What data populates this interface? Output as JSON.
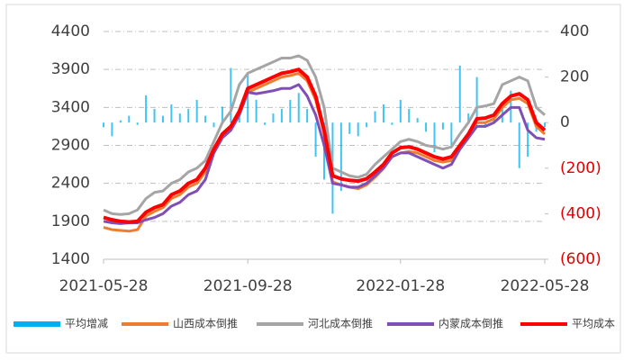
{
  "chart_data": {
    "type": "line",
    "categories": [
      "2021-05-28",
      null,
      null,
      null,
      null,
      null,
      null,
      null,
      null,
      null,
      null,
      null,
      null,
      null,
      null,
      null,
      null,
      "2021-09-28",
      null,
      null,
      null,
      null,
      null,
      null,
      null,
      null,
      null,
      null,
      null,
      null,
      null,
      null,
      null,
      null,
      null,
      "2022-01-28",
      null,
      null,
      null,
      null,
      null,
      null,
      null,
      null,
      null,
      null,
      null,
      null,
      null,
      null,
      null,
      null,
      "2022-05-28"
    ],
    "ylim": [
      1400,
      4400
    ],
    "yticks": [
      1400,
      1900,
      2400,
      2900,
      3400,
      3900,
      4400
    ],
    "y2lim": [
      -600,
      400
    ],
    "y2ticks": [
      {
        "value": -600,
        "label": "(600)"
      },
      {
        "value": -400,
        "label": "(400)"
      },
      {
        "value": -200,
        "label": "(200)"
      },
      0,
      200,
      400
    ],
    "y2_negative_color": "#e00000",
    "grid": true,
    "series": [
      {
        "name": "平均增减",
        "type": "bar",
        "axis": "y2",
        "color": "#00b0f0",
        "values": [
          -20,
          -60,
          10,
          30,
          -10,
          120,
          60,
          30,
          80,
          40,
          60,
          100,
          30,
          -20,
          70,
          240,
          40,
          210,
          100,
          -10,
          40,
          60,
          100,
          130,
          60,
          -150,
          -250,
          -400,
          -300,
          -50,
          -60,
          -20,
          50,
          80,
          -10,
          100,
          60,
          20,
          -40,
          -130,
          -30,
          -100,
          250,
          40,
          200,
          -20,
          30,
          80,
          140,
          -200,
          -150,
          -40,
          -20
        ]
      },
      {
        "name": "山西成本倒推",
        "type": "line",
        "color": "#ed7d31",
        "values": [
          1820,
          1790,
          1780,
          1770,
          1790,
          1970,
          2030,
          2080,
          2200,
          2250,
          2350,
          2400,
          2550,
          2800,
          3000,
          3100,
          3300,
          3600,
          3650,
          3700,
          3750,
          3800,
          3820,
          3850,
          3750,
          3500,
          3050,
          2420,
          2380,
          2350,
          2330,
          2380,
          2480,
          2600,
          2750,
          2800,
          2820,
          2800,
          2750,
          2700,
          2680,
          2700,
          2850,
          3000,
          3200,
          3200,
          3250,
          3400,
          3500,
          3520,
          3450,
          3150,
          3050
        ]
      },
      {
        "name": "河北成本倒推",
        "type": "line",
        "color": "#a5a5a5",
        "values": [
          2050,
          2000,
          1990,
          2000,
          2050,
          2200,
          2280,
          2300,
          2400,
          2450,
          2550,
          2600,
          2700,
          2950,
          3200,
          3350,
          3700,
          3850,
          3900,
          3950,
          4000,
          4050,
          4050,
          4080,
          4020,
          3800,
          3400,
          2600,
          2550,
          2500,
          2480,
          2520,
          2650,
          2750,
          2850,
          2950,
          2980,
          2950,
          2900,
          2880,
          2850,
          2880,
          3050,
          3200,
          3400,
          3420,
          3450,
          3700,
          3750,
          3800,
          3750,
          3400,
          3300
        ]
      },
      {
        "name": "内蒙成本倒推",
        "type": "line",
        "color": "#7f4fb5",
        "values": [
          1900,
          1880,
          1870,
          1880,
          1880,
          1920,
          1950,
          2000,
          2100,
          2150,
          2250,
          2300,
          2450,
          2800,
          3000,
          3100,
          3300,
          3600,
          3580,
          3600,
          3620,
          3650,
          3650,
          3700,
          3550,
          3300,
          2900,
          2400,
          2380,
          2350,
          2350,
          2400,
          2500,
          2600,
          2750,
          2800,
          2800,
          2750,
          2700,
          2650,
          2600,
          2650,
          2850,
          3000,
          3150,
          3150,
          3200,
          3300,
          3400,
          3400,
          3100,
          3000,
          2980
        ]
      },
      {
        "name": "平均成本",
        "type": "line",
        "color": "#ff0000",
        "values": [
          1950,
          1920,
          1900,
          1890,
          1900,
          2020,
          2080,
          2120,
          2250,
          2300,
          2400,
          2450,
          2600,
          2850,
          3050,
          3150,
          3350,
          3650,
          3700,
          3750,
          3800,
          3850,
          3870,
          3900,
          3800,
          3550,
          3100,
          2500,
          2460,
          2440,
          2430,
          2460,
          2550,
          2650,
          2800,
          2870,
          2880,
          2850,
          2800,
          2750,
          2720,
          2750,
          2900,
          3050,
          3250,
          3260,
          3300,
          3450,
          3550,
          3580,
          3500,
          3200,
          3100
        ]
      }
    ]
  }
}
